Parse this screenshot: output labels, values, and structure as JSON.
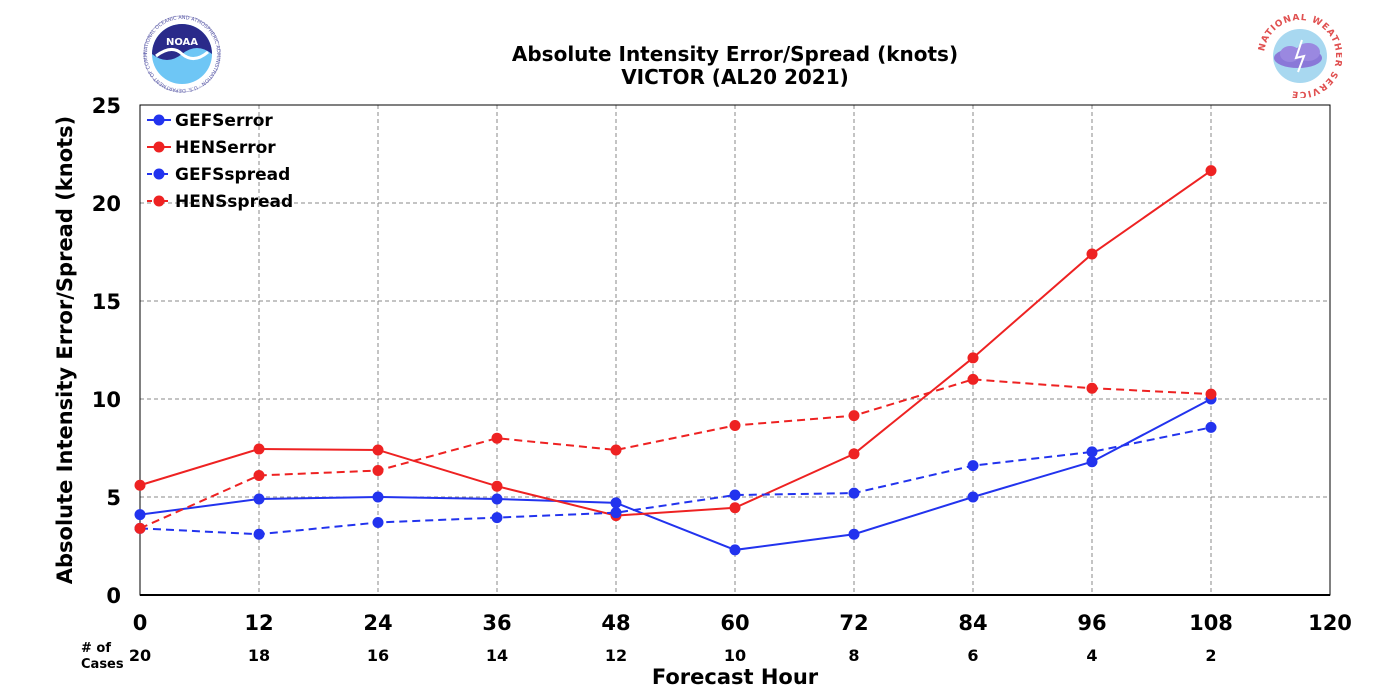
{
  "chart_data": {
    "type": "line",
    "title": "Absolute Intensity Error/Spread (knots)",
    "subtitle": "VICTOR (AL20 2021)",
    "xlabel": "Forecast Hour",
    "ylabel": "Absolute Intensity Error/Spread (knots)",
    "xlim": [
      0,
      120
    ],
    "ylim": [
      0,
      25
    ],
    "xticks": [
      0,
      12,
      24,
      36,
      48,
      60,
      72,
      84,
      96,
      108,
      120
    ],
    "yticks": [
      0,
      5,
      10,
      15,
      20,
      25
    ],
    "grid": true,
    "legend_position": "top-left",
    "cases_label": "# of\nCases",
    "cases_x": [
      0,
      12,
      24,
      36,
      48,
      60,
      72,
      84,
      96,
      108
    ],
    "cases": [
      20,
      18,
      16,
      14,
      12,
      10,
      8,
      6,
      4,
      2
    ],
    "x": [
      0,
      12,
      24,
      36,
      48,
      60,
      72,
      84,
      96,
      108
    ],
    "series": [
      {
        "name": "GEFSerror",
        "color": "#2233ee",
        "style": "solid",
        "values": [
          4.1,
          4.9,
          5.0,
          4.9,
          4.7,
          2.3,
          3.1,
          5.0,
          6.8,
          10.0
        ]
      },
      {
        "name": "HENSerror",
        "color": "#ee2222",
        "style": "solid",
        "values": [
          5.6,
          7.45,
          7.4,
          5.55,
          4.05,
          4.45,
          7.2,
          12.1,
          17.4,
          21.65
        ]
      },
      {
        "name": "GEFSspread",
        "color": "#2233ee",
        "style": "dashed",
        "values": [
          3.4,
          3.1,
          3.7,
          3.95,
          4.2,
          5.1,
          5.2,
          6.6,
          7.3,
          8.55
        ]
      },
      {
        "name": "HENSspread",
        "color": "#ee2222",
        "style": "dashed",
        "values": [
          3.4,
          6.1,
          6.35,
          8.0,
          7.4,
          8.65,
          9.15,
          11.0,
          10.55,
          10.25
        ]
      }
    ]
  },
  "logos": {
    "noaa": {
      "text": "NOAA",
      "ring_text": "NATIONAL OCEANIC AND ATMOSPHERIC ADMINISTRATION · U.S. DEPARTMENT OF COMMERCE"
    },
    "nws": {
      "ring_text": "NATIONAL WEATHER SERVICE"
    }
  }
}
